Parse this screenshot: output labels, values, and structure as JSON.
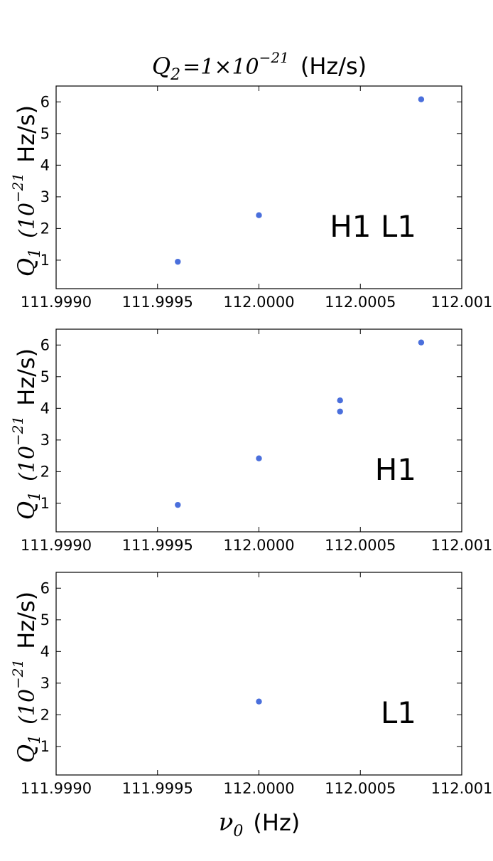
{
  "chart_data": {
    "type": "scatter",
    "title": {
      "var": "Q",
      "sub": "2",
      "eq": "=1×10",
      "exp": "−21",
      "unit": "(Hz/s)"
    },
    "xlabel": {
      "var": "ν",
      "sub": "0",
      "unit": "(Hz)"
    },
    "ylabel": {
      "var": "Q",
      "sub": "1",
      "paren": "(10",
      "exp": "−21",
      "unit": "Hz/s)"
    },
    "xlim": [
      111.999,
      112.001
    ],
    "ylim": [
      0.1,
      6.5
    ],
    "x_ticks": [
      111.999,
      111.9995,
      112.0,
      112.0005,
      112.001
    ],
    "x_tick_labels": [
      "111.9990",
      "111.9995",
      "112.0000",
      "112.0005",
      "112.001"
    ],
    "y_ticks": [
      1,
      2,
      3,
      4,
      5,
      6
    ],
    "y_tick_labels": [
      "1",
      "2",
      "3",
      "4",
      "5",
      "6"
    ],
    "marker_color": "#4a6fdc",
    "panels": [
      {
        "label": "H1 L1",
        "points": [
          {
            "x": 111.9996,
            "y": 0.95
          },
          {
            "x": 112.0,
            "y": 2.42
          },
          {
            "x": 112.0008,
            "y": 6.08
          }
        ]
      },
      {
        "label": "H1",
        "points": [
          {
            "x": 111.9996,
            "y": 0.95
          },
          {
            "x": 112.0,
            "y": 2.42
          },
          {
            "x": 112.0004,
            "y": 3.9
          },
          {
            "x": 112.0004,
            "y": 4.25
          },
          {
            "x": 112.0008,
            "y": 6.08
          }
        ]
      },
      {
        "label": "L1",
        "points": [
          {
            "x": 112.0,
            "y": 2.42
          }
        ]
      }
    ]
  }
}
